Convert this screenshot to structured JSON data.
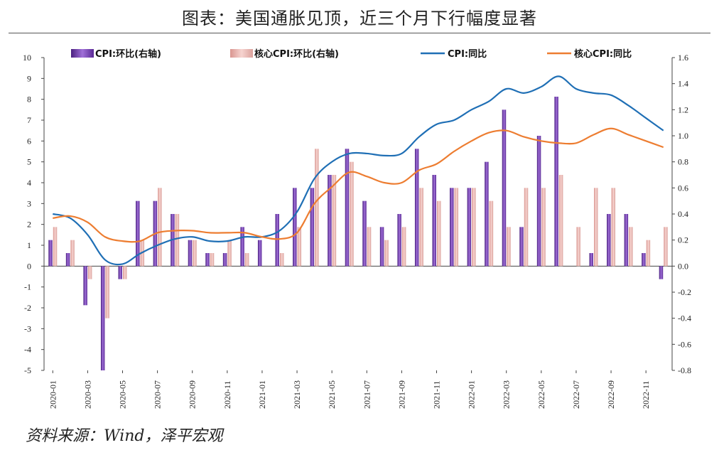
{
  "title": "图表：美国通胀见顶，近三个月下行幅度显著",
  "source": "资料来源：Wind，泽平宏观",
  "chart_data": {
    "type": "bar+line",
    "categories": [
      "2020-01",
      "2020-02",
      "2020-03",
      "2020-04",
      "2020-05",
      "2020-06",
      "2020-07",
      "2020-08",
      "2020-09",
      "2020-10",
      "2020-11",
      "2020-12",
      "2021-01",
      "2021-02",
      "2021-03",
      "2021-04",
      "2021-05",
      "2021-06",
      "2021-07",
      "2021-08",
      "2021-09",
      "2021-10",
      "2021-11",
      "2021-12",
      "2022-01",
      "2022-02",
      "2022-03",
      "2022-04",
      "2022-05",
      "2022-06",
      "2022-07",
      "2022-08",
      "2022-09",
      "2022-10",
      "2022-11",
      "2022-12"
    ],
    "x_tick_labels": [
      "2020-01",
      "2020-03",
      "2020-05",
      "2020-07",
      "2020-09",
      "2020-11",
      "2021-01",
      "2021-03",
      "2021-05",
      "2021-07",
      "2021-09",
      "2021-11",
      "2022-01",
      "2022-03",
      "2022-05",
      "2022-07",
      "2022-09",
      "2022-11"
    ],
    "left_axis": {
      "ylim": [
        -5,
        10
      ],
      "ticks": [
        10,
        9,
        8,
        7,
        6,
        5,
        4,
        3,
        2,
        1,
        0,
        -1,
        -2,
        -3,
        -4,
        -5
      ]
    },
    "right_axis": {
      "ylim": [
        -0.8,
        1.6
      ],
      "ticks": [
        "1.6",
        "1.4",
        "1.2",
        "1.0",
        "0.8",
        "0.6",
        "0.4",
        "0.2",
        "0.0",
        "-0.2",
        "-0.4",
        "-0.6",
        "-0.8"
      ]
    },
    "legend_position": "top",
    "series": [
      {
        "name": "CPI:环比(右轴)",
        "type": "bar",
        "axis": "right",
        "color": "#7b3fb5",
        "values": [
          0.2,
          0.1,
          -0.3,
          -0.8,
          -0.1,
          0.5,
          0.5,
          0.4,
          0.2,
          0.1,
          0.1,
          0.3,
          0.2,
          0.4,
          0.6,
          0.6,
          0.7,
          0.9,
          0.5,
          0.3,
          0.4,
          0.9,
          0.7,
          0.6,
          0.6,
          0.8,
          1.2,
          0.3,
          1.0,
          1.3,
          0.0,
          0.1,
          0.4,
          0.4,
          0.1,
          -0.1
        ]
      },
      {
        "name": "核心CPI:环比(右轴)",
        "type": "bar",
        "axis": "right",
        "color": "#e8b4b0",
        "values": [
          0.3,
          0.2,
          -0.1,
          -0.4,
          -0.1,
          0.2,
          0.6,
          0.4,
          0.2,
          0.1,
          0.2,
          0.1,
          0.0,
          0.1,
          0.3,
          0.9,
          0.7,
          0.8,
          0.3,
          0.2,
          0.3,
          0.6,
          0.5,
          0.6,
          0.6,
          0.5,
          0.3,
          0.6,
          0.6,
          0.7,
          0.3,
          0.6,
          0.6,
          0.3,
          0.2,
          0.3
        ]
      },
      {
        "name": "CPI:同比",
        "type": "line",
        "axis": "left",
        "color": "#1f6fb5",
        "values": [
          2.5,
          2.3,
          1.5,
          0.3,
          0.1,
          0.6,
          1.0,
          1.3,
          1.4,
          1.2,
          1.2,
          1.4,
          1.4,
          1.7,
          2.6,
          4.2,
          5.0,
          5.4,
          5.4,
          5.3,
          5.4,
          6.2,
          6.8,
          7.0,
          7.5,
          7.9,
          8.5,
          8.3,
          8.6,
          9.1,
          8.5,
          8.3,
          8.2,
          7.7,
          7.1,
          6.5
        ]
      },
      {
        "name": "核心CPI:同比",
        "type": "line",
        "axis": "left",
        "color": "#ed7d31",
        "values": [
          2.3,
          2.4,
          2.1,
          1.4,
          1.2,
          1.2,
          1.6,
          1.7,
          1.7,
          1.6,
          1.6,
          1.6,
          1.4,
          1.3,
          1.6,
          3.0,
          3.8,
          4.5,
          4.3,
          4.0,
          4.0,
          4.6,
          4.9,
          5.5,
          6.0,
          6.4,
          6.5,
          6.2,
          6.0,
          5.9,
          5.9,
          6.3,
          6.6,
          6.3,
          6.0,
          5.7
        ]
      }
    ]
  }
}
